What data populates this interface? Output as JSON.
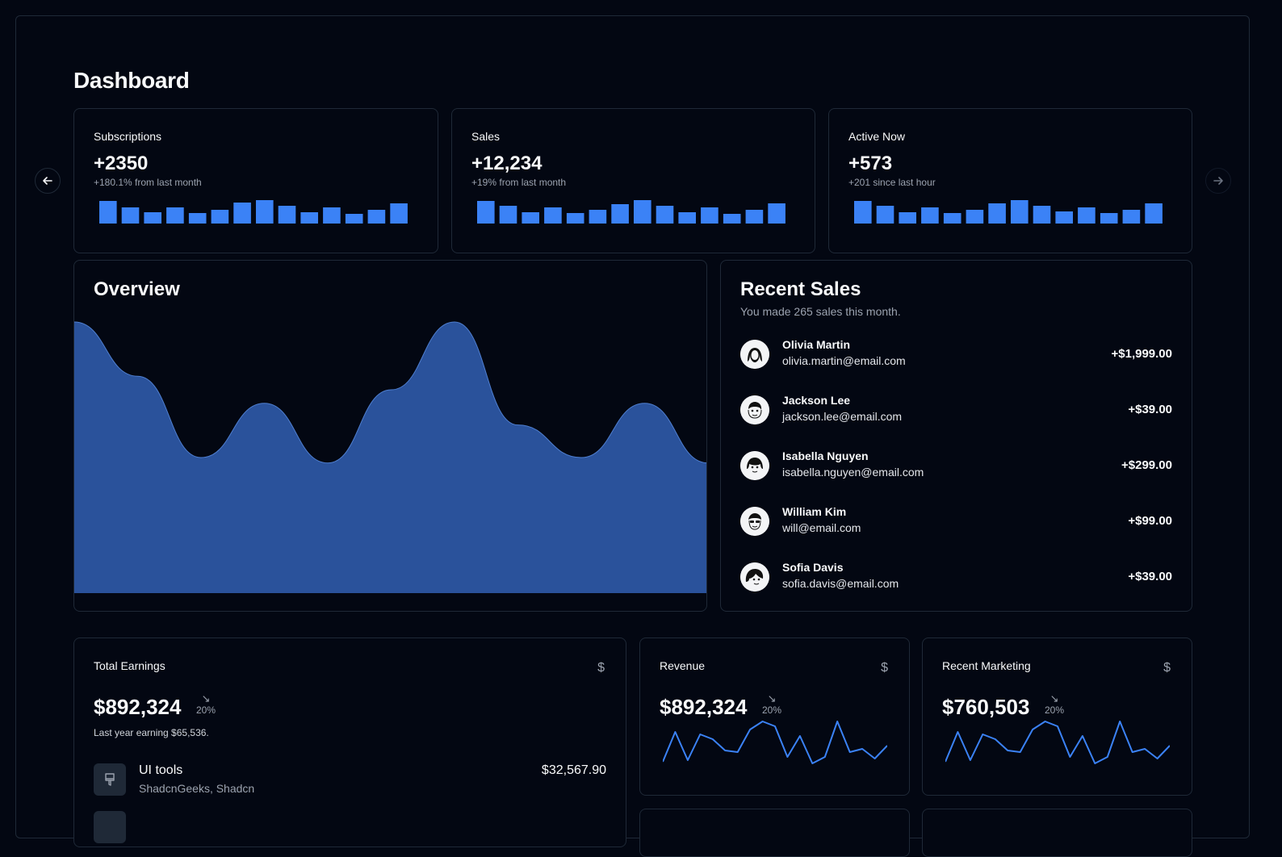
{
  "page": {
    "title": "Dashboard"
  },
  "nav": {
    "prev_icon": "arrow-left-icon",
    "next_icon": "arrow-right-icon"
  },
  "stats": [
    {
      "label": "Subscriptions",
      "value": "+2350",
      "sub": "+180.1% from last month",
      "bars": [
        28,
        20,
        14,
        20,
        13,
        17,
        26,
        29,
        22,
        14,
        20,
        12,
        17,
        25
      ]
    },
    {
      "label": "Sales",
      "value": "+12,234",
      "sub": "+19% from last month",
      "bars": [
        28,
        22,
        14,
        20,
        13,
        17,
        24,
        29,
        22,
        14,
        20,
        12,
        17,
        25
      ]
    },
    {
      "label": "Active Now",
      "value": "+573",
      "sub": "+201 since last hour",
      "bars": [
        28,
        22,
        14,
        20,
        13,
        17,
        25,
        29,
        22,
        15,
        20,
        13,
        17,
        25
      ]
    }
  ],
  "overview": {
    "title": "Overview",
    "chart_data": {
      "type": "area",
      "series": [
        {
          "values": [
            100,
            80,
            50,
            70,
            48,
            75,
            100,
            62,
            50,
            70,
            48
          ]
        }
      ],
      "color": "#2a529b"
    }
  },
  "recent_sales": {
    "title": "Recent Sales",
    "subtitle": "You made 265 sales this month.",
    "items": [
      {
        "name": "Olivia Martin",
        "email": "olivia.martin@email.com",
        "amount": "+$1,999.00"
      },
      {
        "name": "Jackson Lee",
        "email": "jackson.lee@email.com",
        "amount": "+$39.00"
      },
      {
        "name": "Isabella Nguyen",
        "email": "isabella.nguyen@email.com",
        "amount": "+$299.00"
      },
      {
        "name": "William Kim",
        "email": "will@email.com",
        "amount": "+$99.00"
      },
      {
        "name": "Sofia Davis",
        "email": "sofia.davis@email.com",
        "amount": "+$39.00"
      }
    ]
  },
  "total_earnings": {
    "label": "Total Earnings",
    "currency_icon": "$",
    "value": "$892,324",
    "trend_arrow": "↘",
    "trend": "20%",
    "sub": "Last year earning $65,536.",
    "items": [
      {
        "icon": "brush-icon",
        "title": "UI tools",
        "subtitle": "ShadcnGeeks, Shadcn",
        "amount": "$32,567.90"
      }
    ]
  },
  "revenue": {
    "label": "Revenue",
    "currency_icon": "$",
    "value": "$892,324",
    "trend_arrow": "↘",
    "trend": "20%",
    "spark": [
      8,
      45,
      10,
      42,
      36,
      22,
      20,
      48,
      58,
      52,
      14,
      40,
      6,
      14,
      58,
      20,
      24,
      12,
      28
    ]
  },
  "recent_marketing": {
    "label": "Recent Marketing",
    "currency_icon": "$",
    "value": "$760,503",
    "trend_arrow": "↘",
    "trend": "20%",
    "spark": [
      8,
      45,
      10,
      42,
      36,
      22,
      20,
      48,
      58,
      52,
      14,
      40,
      6,
      14,
      58,
      20,
      24,
      12,
      28
    ]
  },
  "colors": {
    "accent": "#3b82f6",
    "area": "#2a529b",
    "border": "#1f2937",
    "bg": "#030712"
  }
}
